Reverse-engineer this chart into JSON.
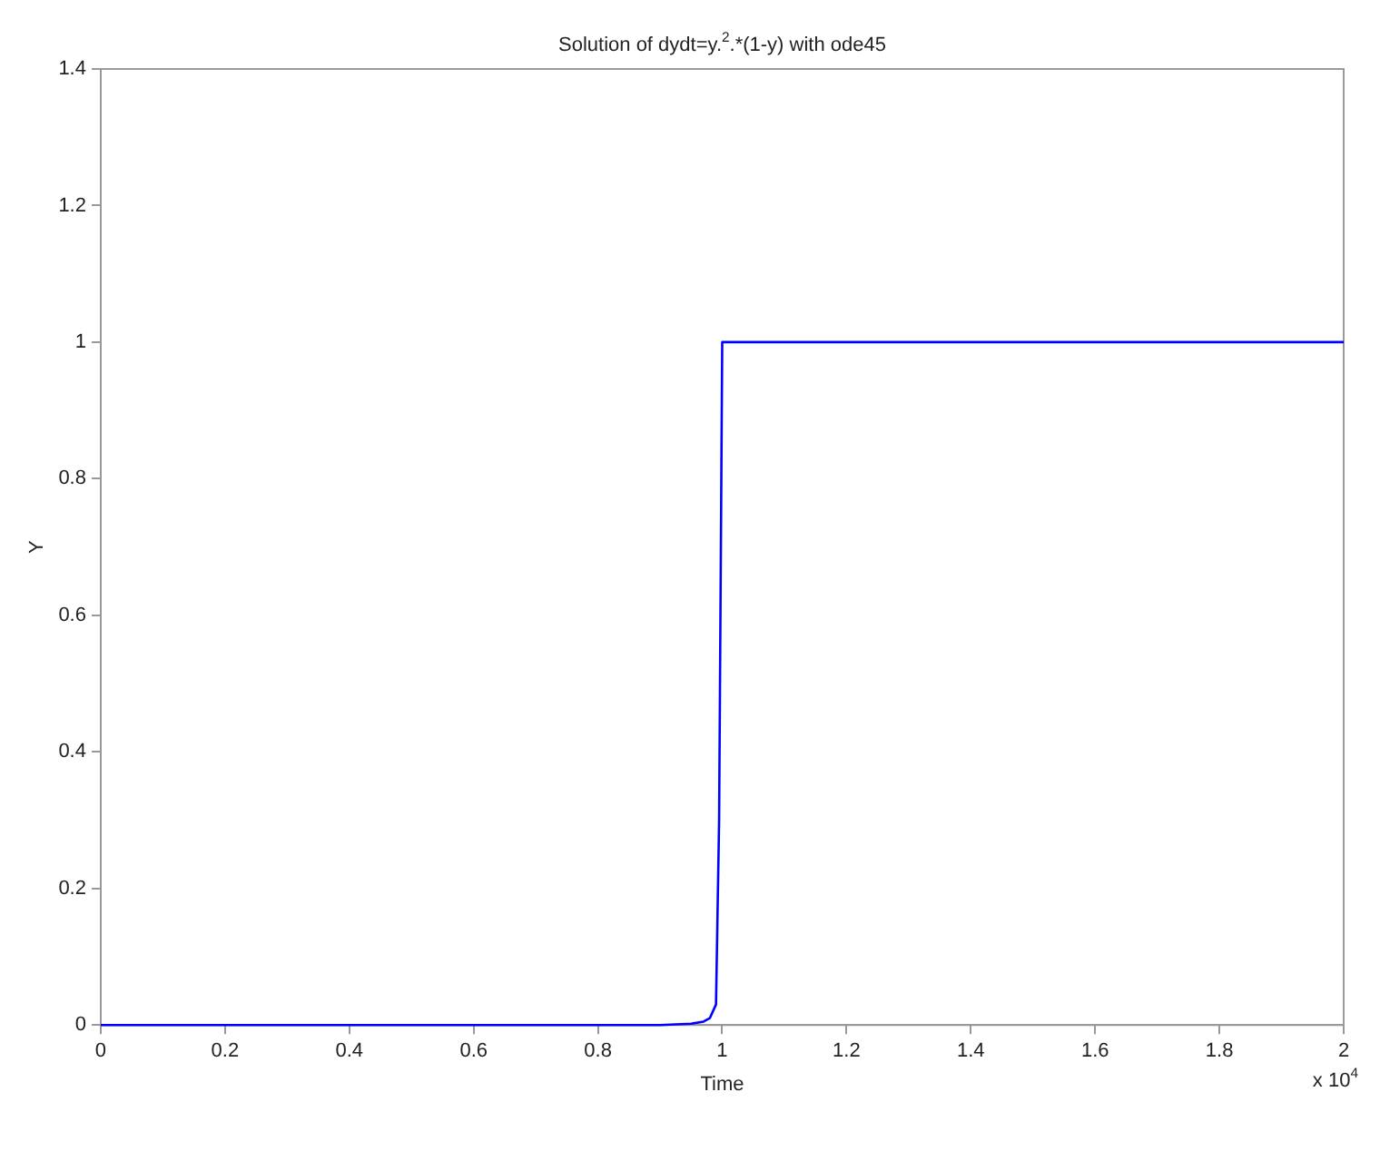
{
  "chart_data": {
    "type": "line",
    "title": "Solution of dydt=y.$^{2}$.*(1-y) with ode45",
    "xlabel": "Time",
    "ylabel": "Y",
    "x": [
      0,
      0.5,
      0.9,
      0.95,
      0.97,
      0.98,
      0.99,
      0.995,
      1.0,
      1.2,
      1.6,
      2
    ],
    "series": [
      {
        "color": "#0000ff",
        "values": [
          0,
          0,
          0,
          0.002,
          0.005,
          0.01,
          0.03,
          0.3,
          1,
          1,
          1,
          1
        ]
      }
    ],
    "xlim": [
      0,
      2
    ],
    "xticks": [
      0,
      0.2,
      0.4,
      0.6,
      0.8,
      1,
      1.2,
      1.4,
      1.6,
      1.8,
      2
    ],
    "ylim": [
      0,
      1.4
    ],
    "yticks": [
      0,
      0.2,
      0.4,
      0.6,
      0.8,
      1,
      1.2,
      1.4
    ],
    "grid": false,
    "legend": false,
    "marker": "none",
    "line_style": "solid",
    "annotations": [
      "x 10$^{4}$"
    ]
  }
}
